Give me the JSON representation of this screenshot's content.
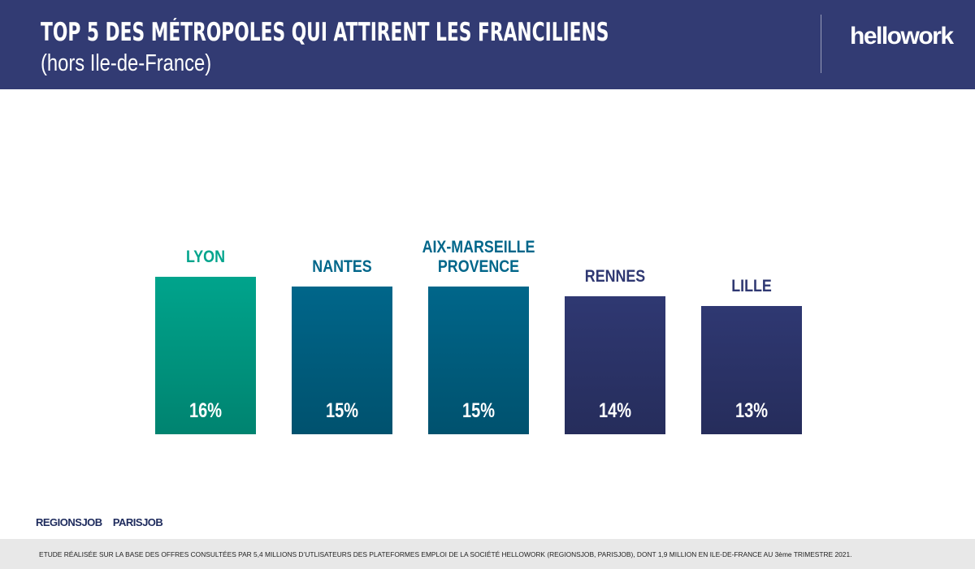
{
  "header": {
    "title": "TOP 5 DES MÉTROPOLES QUI ATTIRENT LES FRANCILIENS",
    "subtitle": "(hors Ile-de-France)",
    "logo": "hellowork"
  },
  "chart_data": {
    "type": "bar",
    "categories": [
      "LYON",
      "NANTES",
      "AIX-MARSEILLE PROVENCE",
      "RENNES",
      "LILLE"
    ],
    "values": [
      16,
      15,
      15,
      14,
      13
    ],
    "value_labels": [
      "16%",
      "15%",
      "15%",
      "14%",
      "13%"
    ],
    "colors": [
      "#00a48c",
      "#00668a",
      "#00668a",
      "#2f3872",
      "#2f3872"
    ]
  },
  "footer": {
    "logos": [
      "REGIONSJOB",
      "PARISJOB"
    ],
    "note": "ETUDE RÉALISÉE SUR LA BASE DES OFFRES CONSULTÉES PAR 5,4 MILLIONS D’UTLISATEURS DES PLATEFORMES EMPLOI DE LA SOCIÉTÉ HELLOWORK (REGIONSJOB, PARISJOB), DONT 1,9 MILLION EN ILE-DE-FRANCE AU 3ème TRIMESTRE 2021."
  }
}
